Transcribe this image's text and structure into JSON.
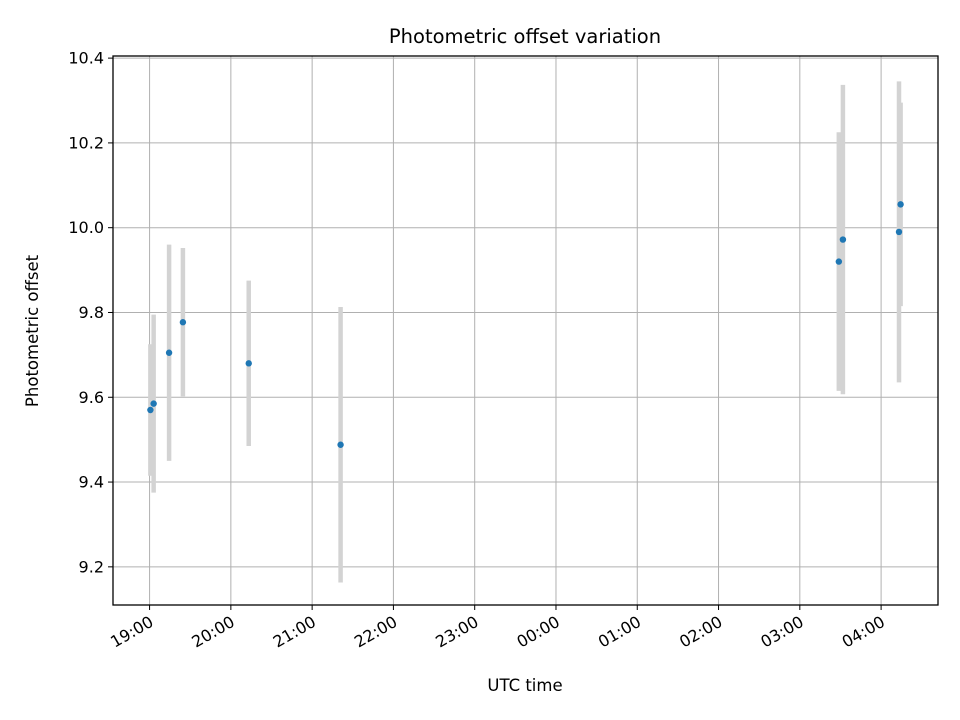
{
  "chart_data": {
    "type": "scatter",
    "title": "Photometric offset variation",
    "xlabel": "UTC time",
    "ylabel": "Photometric offset",
    "x_ticks": [
      "19:00",
      "20:00",
      "21:00",
      "22:00",
      "23:00",
      "00:00",
      "01:00",
      "02:00",
      "03:00",
      "04:00"
    ],
    "y_ticks": [
      "9.2",
      "9.4",
      "9.6",
      "9.8",
      "10.0",
      "10.2",
      "10.4"
    ],
    "x_unit": "hours after 19:00 UTC",
    "xlim": [
      -0.45,
      9.7
    ],
    "ylim": [
      9.11,
      10.405
    ],
    "grid": true,
    "marker_color": "#1f77b4",
    "errorbar_color": "#d3d3d3",
    "points": [
      {
        "x": 0.01,
        "y": 9.57,
        "yerr": 0.155
      },
      {
        "x": 0.05,
        "y": 9.585,
        "yerr": 0.21
      },
      {
        "x": 0.24,
        "y": 9.705,
        "yerr": 0.255
      },
      {
        "x": 0.41,
        "y": 9.777,
        "yerr": 0.175
      },
      {
        "x": 1.22,
        "y": 9.68,
        "yerr": 0.195
      },
      {
        "x": 2.35,
        "y": 9.488,
        "yerr": 0.325
      },
      {
        "x": 8.48,
        "y": 9.92,
        "yerr": 0.305
      },
      {
        "x": 8.53,
        "y": 9.972,
        "yerr": 0.365
      },
      {
        "x": 9.22,
        "y": 9.99,
        "yerr": 0.355
      },
      {
        "x": 9.24,
        "y": 10.055,
        "yerr": 0.24
      }
    ]
  }
}
